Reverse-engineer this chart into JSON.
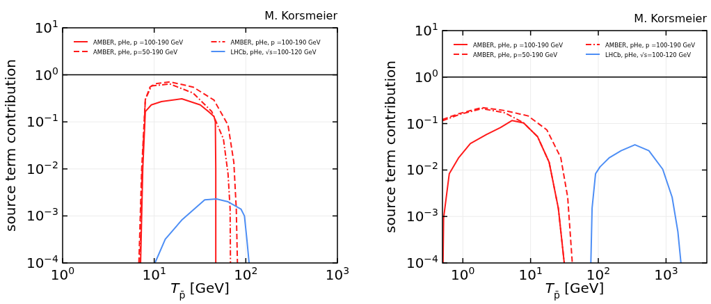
{
  "chart_data": [
    {
      "type": "line",
      "title": "M. Korsmeier",
      "xlabel": "T$_{p̄}$ [GeV]",
      "ylabel": "source term contribution",
      "log": "xy",
      "grid": true,
      "legend": "top",
      "xlim": [
        1,
        1000
      ],
      "ylim": [
        0.0001,
        10
      ],
      "xticks": [
        {
          "value": 1,
          "label": "10$^{0}$"
        },
        {
          "value": 10,
          "label": "10$^{1}$"
        },
        {
          "value": 100,
          "label": "10$^{2}$"
        },
        {
          "value": 1000,
          "label": "10$^{3}$"
        }
      ],
      "yticks": [
        {
          "value": 0.0001,
          "label": "10$^{−4}$"
        },
        {
          "value": 0.001,
          "label": "10$^{−3}$"
        },
        {
          "value": 0.01,
          "label": "10$^{−2}$"
        },
        {
          "value": 0.1,
          "label": "10$^{−1}$"
        },
        {
          "value": 1,
          "label": "10$^{0}$"
        },
        {
          "value": 10,
          "label": "10$^{1}$"
        }
      ],
      "ref_lines": [
        {
          "axis": "y",
          "value": 1,
          "color": "#000000"
        }
      ],
      "series": [
        {
          "name": "AMBER, pHe, p =100-190 GeV",
          "color": "#ff1a1a",
          "line_style": "solid",
          "x": [
            7.1,
            7.5,
            8.0,
            9.3,
            12,
            20,
            31.8,
            40,
            45,
            46.5,
            47,
            47
          ],
          "values": [
            0.0001,
            0.01,
            0.166,
            0.23,
            0.27,
            0.31,
            0.23,
            0.16,
            0.13,
            0.1,
            0.01,
            0.0001
          ]
        },
        {
          "name": "AMBER, pHe, p=50-190 GeV",
          "color": "#ff1a1a",
          "line_style": "dashed",
          "x": [
            6.8,
            7.3,
            8.0,
            9.0,
            10.4,
            14.8,
            26.6,
            45,
            64,
            74,
            78.7,
            81
          ],
          "values": [
            0.0001,
            0.01,
            0.3,
            0.55,
            0.65,
            0.71,
            0.55,
            0.29,
            0.085,
            0.0138,
            0.0014,
            0.0001
          ]
        },
        {
          "name": "AMBER, pHe, p =100-190 GeV",
          "color": "#ff1a1a",
          "line_style": "dashdot",
          "x": [
            7.0,
            7.4,
            8.0,
            9.3,
            14.8,
            26.6,
            42.5,
            57,
            64,
            67.4,
            68
          ],
          "values": [
            0.0001,
            0.01,
            0.3,
            0.58,
            0.64,
            0.41,
            0.166,
            0.043,
            0.0078,
            0.0014,
            0.0001
          ]
        },
        {
          "name": "LHCb, pHe, √s=100-120 GeV",
          "color": "#4d8ef5",
          "line_style": "solid",
          "x": [
            10.2,
            13.2,
            19.9,
            35.6,
            47.8,
            64,
            88.5,
            96.6,
            103,
            108.6
          ],
          "values": [
            0.0001,
            0.00032,
            0.00081,
            0.0022,
            0.0023,
            0.002,
            0.0014,
            0.001,
            0.0003,
            0.0001
          ]
        }
      ]
    },
    {
      "type": "line",
      "title": "M. Korsmeier",
      "xlabel": "T$_{p̄}$ [GeV]",
      "ylabel": "source term contribution",
      "log": "xy",
      "grid": true,
      "legend": "top",
      "xlim": [
        0.5,
        4000
      ],
      "ylim": [
        0.0001,
        10
      ],
      "xticks": [
        {
          "value": 1,
          "label": "10$^{0}$"
        },
        {
          "value": 10,
          "label": "10$^{1}$"
        },
        {
          "value": 100,
          "label": "10$^{2}$"
        },
        {
          "value": 1000,
          "label": "10$^{3}$"
        }
      ],
      "yticks": [
        {
          "value": 0.0001,
          "label": "10$^{−4}$"
        },
        {
          "value": 0.001,
          "label": "10$^{−3}$"
        },
        {
          "value": 0.01,
          "label": "10$^{−2}$"
        },
        {
          "value": 0.1,
          "label": "10$^{−1}$"
        },
        {
          "value": 1,
          "label": "10$^{0}$"
        },
        {
          "value": 10,
          "label": "10$^{1}$"
        }
      ],
      "ref_lines": [
        {
          "axis": "y",
          "value": 1,
          "color": "#000000"
        }
      ],
      "series": [
        {
          "name": "AMBER, pHe, p =100-190 GeV",
          "color": "#ff1a1a",
          "line_style": "solid",
          "x": [
            0.51,
            0.52,
            0.63,
            0.87,
            1.29,
            2.23,
            3.59,
            5.3,
            7.9,
            12.7,
            18.8,
            25.7,
            31.4
          ],
          "values": [
            0.0001,
            0.00093,
            0.0083,
            0.0185,
            0.037,
            0.058,
            0.082,
            0.116,
            0.103,
            0.052,
            0.0147,
            0.0015,
            0.0001
          ]
        },
        {
          "name": "AMBER, pHe, p=50-190 GeV",
          "color": "#ff1a1a",
          "line_style": "dashed",
          "x": [
            0.5,
            0.87,
            1.91,
            4.2,
            9.2,
            17.4,
            27.9,
            35.3,
            41.3
          ],
          "values": [
            0.122,
            0.163,
            0.22,
            0.19,
            0.146,
            0.073,
            0.0185,
            0.0026,
            0.0001
          ]
        },
        {
          "name": "AMBER, pHe, p =100-190 GeV",
          "color": "#ff1a1a",
          "line_style": "dashdot",
          "x": [
            0.5,
            0.87,
            1.91,
            4.2,
            7.9,
            12.7,
            18.8,
            25.7,
            31.4
          ],
          "values": [
            0.115,
            0.155,
            0.21,
            0.17,
            0.103,
            0.052,
            0.0147,
            0.0015,
            0.0001
          ]
        },
        {
          "name": "LHCb, pHe, √s=100-120 GeV",
          "color": "#4d8ef5",
          "line_style": "solid",
          "x": [
            77.6,
            80.9,
            91,
            106,
            146,
            217,
            347,
            558,
            893,
            1230,
            1496,
            1660
          ],
          "values": [
            0.0001,
            0.0015,
            0.0083,
            0.0117,
            0.0185,
            0.026,
            0.035,
            0.026,
            0.0104,
            0.0026,
            0.00047,
            0.0001
          ]
        }
      ]
    }
  ]
}
